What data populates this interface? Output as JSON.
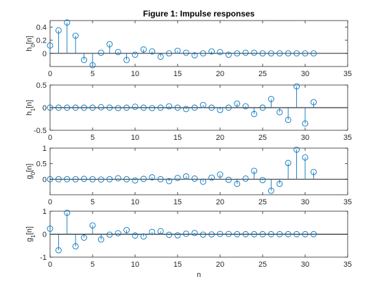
{
  "title": "Figure 1: Impulse responses",
  "colors": {
    "stem": "#0072BD",
    "axis": "#262626",
    "baseline": "#000000",
    "background": "#ffffff"
  },
  "chart_data": [
    {
      "type": "stem",
      "ylabel": "h₀[n]",
      "ylabel_main": "h",
      "ylabel_sub": "0",
      "ylabel_tail": "[n]",
      "xlabel": "",
      "xlim": [
        0,
        35
      ],
      "ylim": [
        -0.2,
        0.5
      ],
      "xticks": [
        "0",
        "5",
        "10",
        "15",
        "20",
        "25",
        "30",
        "35"
      ],
      "yticks": [
        "0",
        "0.2",
        "0.4"
      ],
      "ytick_values": [
        0,
        0.2,
        0.4
      ],
      "x": [
        0,
        1,
        2,
        3,
        4,
        5,
        6,
        7,
        8,
        9,
        10,
        11,
        12,
        13,
        14,
        15,
        16,
        17,
        18,
        19,
        20,
        21,
        22,
        23,
        24,
        25,
        26,
        27,
        28,
        29,
        30,
        31
      ],
      "y": [
        0.12,
        0.35,
        0.47,
        0.27,
        -0.1,
        -0.18,
        0.01,
        0.14,
        0.02,
        -0.1,
        -0.02,
        0.06,
        0.03,
        -0.05,
        0.0,
        0.04,
        0.01,
        -0.03,
        0.0,
        0.03,
        0.02,
        -0.02,
        0.0,
        0.01,
        0.01,
        0.0,
        0.0,
        0.0,
        0.0,
        0.0,
        0.0,
        0.0
      ]
    },
    {
      "type": "stem",
      "ylabel": "h₁[n]",
      "ylabel_main": "h",
      "ylabel_sub": "1",
      "ylabel_tail": "[n]",
      "xlabel": "",
      "xlim": [
        0,
        35
      ],
      "ylim": [
        -0.5,
        0.5
      ],
      "xticks": [
        "0",
        "5",
        "10",
        "15",
        "20",
        "25",
        "30",
        "35"
      ],
      "yticks": [
        "-0.5",
        "0",
        "0.5"
      ],
      "ytick_values": [
        -0.5,
        0,
        0.5
      ],
      "x": [
        0,
        1,
        2,
        3,
        4,
        5,
        6,
        7,
        8,
        9,
        10,
        11,
        12,
        13,
        14,
        15,
        16,
        17,
        18,
        19,
        20,
        21,
        22,
        23,
        24,
        25,
        26,
        27,
        28,
        29,
        30,
        31
      ],
      "y": [
        0.0,
        0.0,
        0.0,
        0.0,
        0.0,
        0.0,
        0.01,
        0.0,
        -0.01,
        0.0,
        0.02,
        0.0,
        -0.01,
        0.0,
        0.03,
        0.0,
        -0.03,
        0.0,
        0.06,
        0.0,
        -0.05,
        0.0,
        0.09,
        0.03,
        -0.14,
        0.0,
        0.19,
        -0.1,
        -0.27,
        0.47,
        -0.35,
        0.12
      ]
    },
    {
      "type": "stem",
      "ylabel": "g₀[n]",
      "ylabel_main": "g",
      "ylabel_sub": "0",
      "ylabel_tail": "[n]",
      "xlabel": "",
      "xlim": [
        0,
        35
      ],
      "ylim": [
        -0.5,
        1
      ],
      "xticks": [
        "0",
        "5",
        "10",
        "15",
        "20",
        "25",
        "30",
        "35"
      ],
      "yticks": [
        "0",
        "0.5",
        "1"
      ],
      "ytick_values": [
        0,
        0.5,
        1
      ],
      "x": [
        0,
        1,
        2,
        3,
        4,
        5,
        6,
        7,
        8,
        9,
        10,
        11,
        12,
        13,
        14,
        15,
        16,
        17,
        18,
        19,
        20,
        21,
        22,
        23,
        24,
        25,
        26,
        27,
        28,
        29,
        30,
        31
      ],
      "y": [
        0.0,
        0.0,
        0.0,
        0.0,
        0.01,
        0.0,
        -0.01,
        0.0,
        0.03,
        0.0,
        -0.04,
        0.01,
        0.06,
        0.0,
        -0.06,
        0.04,
        0.09,
        0.02,
        -0.08,
        0.05,
        0.15,
        -0.02,
        -0.15,
        0.02,
        0.27,
        -0.03,
        -0.37,
        -0.15,
        0.52,
        0.95,
        0.7,
        0.23
      ]
    },
    {
      "type": "stem",
      "ylabel": "g₁[n]",
      "ylabel_main": "g",
      "ylabel_sub": "1",
      "ylabel_tail": "[n]",
      "xlabel": "n",
      "xlim": [
        0,
        35
      ],
      "ylim": [
        -1,
        1
      ],
      "xticks": [
        "0",
        "5",
        "10",
        "15",
        "20",
        "25",
        "30",
        "35"
      ],
      "yticks": [
        "-1",
        "0",
        "1"
      ],
      "ytick_values": [
        -1,
        0,
        1
      ],
      "x": [
        0,
        1,
        2,
        3,
        4,
        5,
        6,
        7,
        8,
        9,
        10,
        11,
        12,
        13,
        14,
        15,
        16,
        17,
        18,
        19,
        20,
        21,
        22,
        23,
        24,
        25,
        26,
        27,
        28,
        29,
        30,
        31
      ],
      "y": [
        0.24,
        -0.7,
        0.93,
        -0.53,
        -0.15,
        0.38,
        -0.23,
        -0.02,
        0.04,
        0.18,
        -0.06,
        -0.1,
        0.1,
        0.13,
        -0.03,
        -0.05,
        0.02,
        0.05,
        -0.02,
        -0.01,
        0.01,
        0.01,
        0.0,
        0.0,
        0.0,
        0.0,
        0.0,
        0.0,
        0.0,
        0.0,
        0.0,
        0.0
      ]
    }
  ]
}
